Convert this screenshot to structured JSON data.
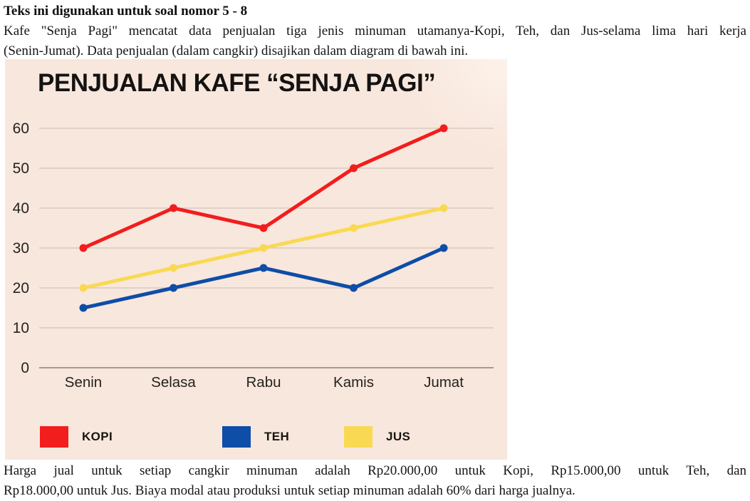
{
  "header": {
    "instruction": "Teks ini digunakan untuk soal nomor 5 - 8",
    "intro_lines": [
      "Kafe \"Senja Pagi\" mencatat data penjualan tiga jenis minuman utamanya-Kopi, Teh, dan Jus-selama lima hari kerja",
      "(Senin-Jumat). Data penjualan (dalam cangkir) disajikan dalam diagram di bawah ini."
    ]
  },
  "chart_data": {
    "type": "line",
    "title": "PENJUALAN KAFE “SENJA PAGI”",
    "categories": [
      "Senin",
      "Selasa",
      "Rabu",
      "Kamis",
      "Jumat"
    ],
    "series": [
      {
        "name": "KOPI",
        "color": "#f21d1d",
        "values": [
          30,
          40,
          35,
          50,
          60
        ]
      },
      {
        "name": "TEH",
        "color": "#0e4da8",
        "values": [
          15,
          20,
          25,
          20,
          30
        ]
      },
      {
        "name": "JUS",
        "color": "#f9d952",
        "values": [
          20,
          25,
          30,
          35,
          40
        ]
      }
    ],
    "ylim": [
      0,
      60
    ],
    "ytick_step": 10,
    "grid": true,
    "legend_position": "bottom",
    "background_color": "#f8e7dd",
    "gridline_color": "#d2c6bd",
    "axis_color": "#8a8076",
    "unit": "cangkir"
  },
  "footer": {
    "lines": [
      "Harga jual untuk setiap cangkir minuman adalah Rp20.000,00 untuk Kopi, Rp15.000,00 untuk Teh, dan",
      "Rp18.000,00 untuk Jus. Biaya modal atau produksi untuk setiap minuman adalah 60% dari harga jualnya."
    ]
  }
}
